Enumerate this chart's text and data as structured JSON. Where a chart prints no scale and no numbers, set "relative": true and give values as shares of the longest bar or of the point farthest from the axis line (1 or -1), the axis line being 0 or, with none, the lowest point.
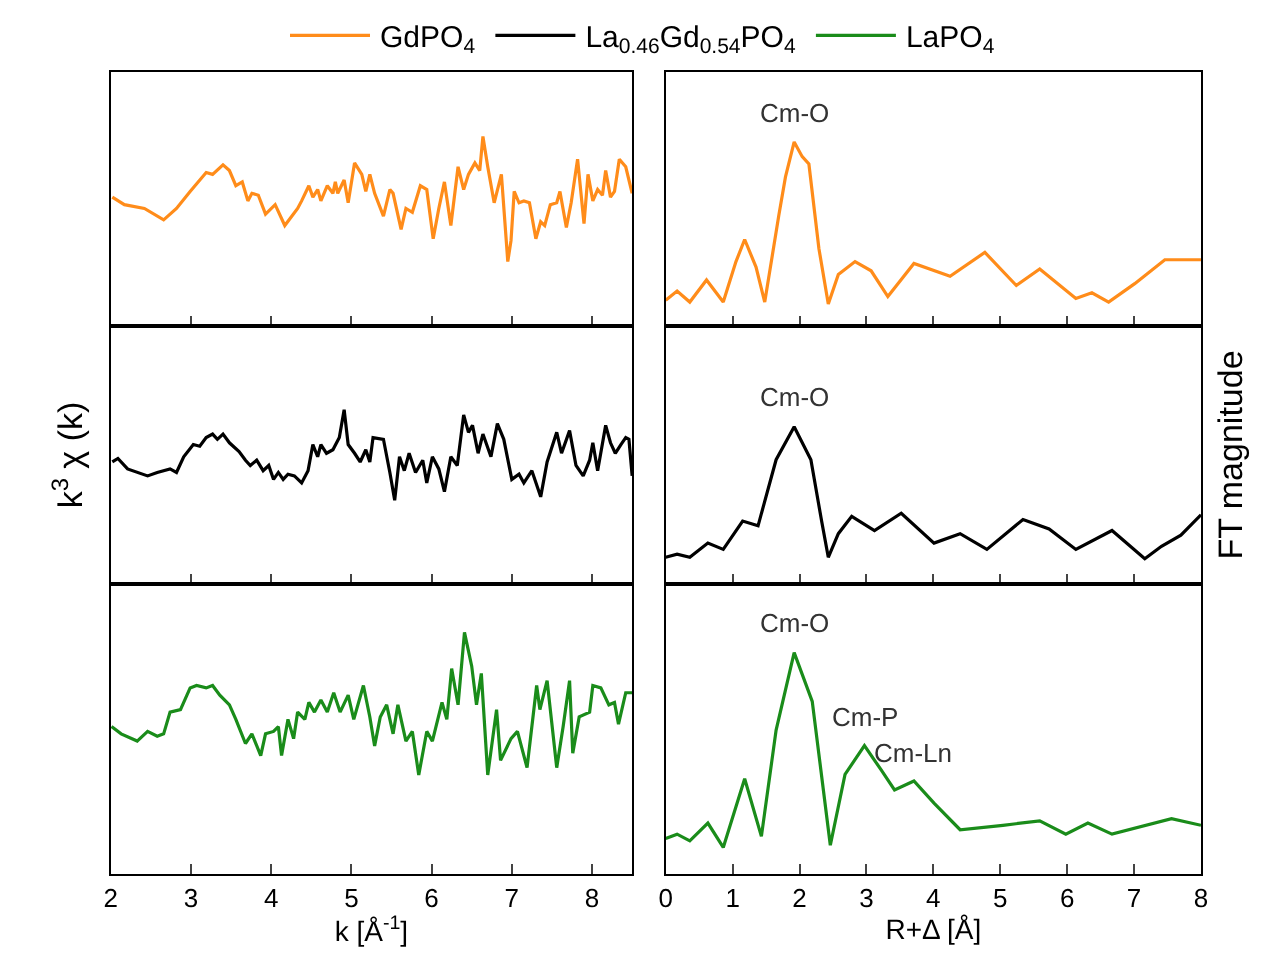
{
  "chart_data": [
    {
      "type": "line",
      "relative": true,
      "legend": "top",
      "tick_labels": false,
      "xlim": [
        2,
        8.5
      ],
      "xticks": [
        2,
        3,
        4,
        5,
        6,
        7,
        8
      ],
      "x": [
        2.02,
        2.17,
        2.42,
        2.66,
        2.82,
        2.99,
        3.19,
        3.27,
        3.4,
        3.48,
        3.56,
        3.64,
        3.71,
        3.76,
        3.84,
        3.93,
        4.05,
        4.17,
        4.33,
        4.38,
        4.47,
        4.52,
        4.58,
        4.62,
        4.7,
        4.77,
        4.8,
        4.83,
        4.91,
        4.96,
        5.04,
        5.13,
        5.18,
        5.23,
        5.29,
        5.4,
        5.48,
        5.52,
        5.62,
        5.68,
        5.76,
        5.86,
        5.94,
        6.02,
        6.09,
        6.16,
        6.24,
        6.33,
        6.4,
        6.46,
        6.54,
        6.6,
        6.64,
        6.7,
        6.78,
        6.87,
        6.95,
        6.99,
        7.03,
        7.09,
        7.15,
        7.22,
        7.3,
        7.36,
        7.41,
        7.48,
        7.56,
        7.6,
        7.68,
        7.74,
        7.82,
        7.9,
        7.95,
        8.01,
        8.07,
        8.13,
        8.17,
        8.23,
        8.28,
        8.34,
        8.42,
        8.5
      ],
      "series": [
        {
          "name": "GdPO$_{4}$",
          "color": "#ff8c1a",
          "values": [
            0.68,
            0.64,
            0.62,
            0.56,
            0.62,
            0.71,
            0.81,
            0.8,
            0.85,
            0.82,
            0.74,
            0.76,
            0.66,
            0.7,
            0.69,
            0.59,
            0.64,
            0.53,
            0.62,
            0.66,
            0.74,
            0.68,
            0.72,
            0.66,
            0.74,
            0.7,
            0.76,
            0.7,
            0.77,
            0.65,
            0.86,
            0.8,
            0.71,
            0.8,
            0.7,
            0.58,
            0.72,
            0.7,
            0.51,
            0.62,
            0.6,
            0.74,
            0.72,
            0.46,
            0.62,
            0.76,
            0.53,
            0.84,
            0.72,
            0.8,
            0.86,
            0.82,
            1.0,
            0.84,
            0.65,
            0.8,
            0.34,
            0.45,
            0.71,
            0.65,
            0.66,
            0.65,
            0.46,
            0.55,
            0.53,
            0.64,
            0.65,
            0.71,
            0.52,
            0.65,
            0.88,
            0.54,
            0.8,
            0.66,
            0.72,
            0.69,
            0.82,
            0.68,
            0.71,
            0.88,
            0.84,
            0.7
          ]
        }
      ]
    },
    {
      "type": "line",
      "relative": true,
      "legend": "top",
      "tick_labels": false,
      "xlim": [
        0,
        8
      ],
      "xticks": [
        0,
        1,
        2,
        3,
        4,
        5,
        6,
        7,
        8
      ],
      "x": [
        0,
        0.17,
        0.36,
        0.61,
        0.86,
        1.05,
        1.18,
        1.35,
        1.48,
        1.69,
        1.79,
        1.92,
        2.04,
        2.14,
        2.29,
        2.43,
        2.58,
        2.83,
        3.07,
        3.32,
        3.71,
        4.25,
        4.77,
        5.24,
        5.59,
        6.13,
        6.37,
        6.62,
        7.01,
        7.46,
        8.0
      ],
      "series": [
        {
          "name": "GdPO$_{4}$",
          "color": "#ff8c1a",
          "values": [
            0.14,
            0.19,
            0.13,
            0.25,
            0.13,
            0.35,
            0.47,
            0.32,
            0.13,
            0.6,
            0.81,
            1.0,
            0.92,
            0.88,
            0.42,
            0.12,
            0.28,
            0.35,
            0.3,
            0.16,
            0.34,
            0.27,
            0.4,
            0.22,
            0.31,
            0.15,
            0.18,
            0.13,
            0.23,
            0.36,
            0.36
          ]
        }
      ],
      "annotations": [
        {
          "text": "Cm-O",
          "x": 1.92,
          "y": 1.0
        }
      ]
    },
    {
      "type": "line",
      "relative": true,
      "legend": "top",
      "tick_labels": false,
      "xlim": [
        2,
        8.5
      ],
      "xticks": [
        2,
        3,
        4,
        5,
        6,
        7,
        8
      ],
      "ylabel": "k$^{3}$ χ (k)",
      "x": [
        2.02,
        2.09,
        2.21,
        2.46,
        2.58,
        2.74,
        2.82,
        2.91,
        3.03,
        3.11,
        3.19,
        3.27,
        3.33,
        3.4,
        3.48,
        3.6,
        3.68,
        3.74,
        3.82,
        3.9,
        3.97,
        4.03,
        4.09,
        4.15,
        4.21,
        4.29,
        4.38,
        4.46,
        4.52,
        4.58,
        4.62,
        4.69,
        4.77,
        4.85,
        4.91,
        4.96,
        5.04,
        5.11,
        5.18,
        5.23,
        5.27,
        5.4,
        5.48,
        5.54,
        5.6,
        5.66,
        5.72,
        5.8,
        5.89,
        5.94,
        6.01,
        6.09,
        6.16,
        6.24,
        6.32,
        6.4,
        6.46,
        6.51,
        6.58,
        6.64,
        6.74,
        6.82,
        6.9,
        7.0,
        7.09,
        7.15,
        7.25,
        7.36,
        7.44,
        7.56,
        7.62,
        7.72,
        7.8,
        7.89,
        7.97,
        8.01,
        8.07,
        8.17,
        8.23,
        8.29,
        8.36,
        8.42,
        8.46,
        8.5
      ],
      "series": [
        {
          "name": "La$_{0.46}$Gd$_{0.54}$PO$_{4}$",
          "color": "#000000",
          "values": [
            0.7,
            0.72,
            0.66,
            0.62,
            0.64,
            0.66,
            0.64,
            0.73,
            0.8,
            0.79,
            0.84,
            0.86,
            0.83,
            0.86,
            0.81,
            0.76,
            0.71,
            0.68,
            0.71,
            0.65,
            0.68,
            0.6,
            0.64,
            0.6,
            0.63,
            0.62,
            0.58,
            0.65,
            0.8,
            0.73,
            0.8,
            0.75,
            0.77,
            0.84,
            1.0,
            0.8,
            0.75,
            0.7,
            0.77,
            0.7,
            0.84,
            0.83,
            0.64,
            0.48,
            0.73,
            0.65,
            0.75,
            0.64,
            0.71,
            0.58,
            0.73,
            0.66,
            0.53,
            0.73,
            0.68,
            0.97,
            0.87,
            0.91,
            0.75,
            0.86,
            0.73,
            0.92,
            0.83,
            0.6,
            0.63,
            0.58,
            0.65,
            0.5,
            0.7,
            0.87,
            0.75,
            0.88,
            0.68,
            0.62,
            0.71,
            0.81,
            0.65,
            0.91,
            0.81,
            0.75,
            0.8,
            0.84,
            0.83,
            0.62
          ]
        }
      ]
    },
    {
      "type": "line",
      "relative": true,
      "legend": "top",
      "tick_labels": false,
      "xlim": [
        0,
        8
      ],
      "xticks": [
        0,
        1,
        2,
        3,
        4,
        5,
        6,
        7,
        8
      ],
      "ylabel": "FT magnitude",
      "x": [
        0,
        0.17,
        0.36,
        0.63,
        0.86,
        1.15,
        1.38,
        1.65,
        1.92,
        2.17,
        2.33,
        2.43,
        2.58,
        2.78,
        3.12,
        3.52,
        4.01,
        4.4,
        4.8,
        5.34,
        5.73,
        6.13,
        6.67,
        7.16,
        7.41,
        7.7,
        8.0
      ],
      "series": [
        {
          "name": "La$_{0.46}$Gd$_{0.54}$PO$_{4}$",
          "color": "#000000",
          "values": [
            0.17,
            0.19,
            0.17,
            0.26,
            0.22,
            0.4,
            0.37,
            0.79,
            1.0,
            0.79,
            0.4,
            0.17,
            0.32,
            0.43,
            0.34,
            0.45,
            0.26,
            0.32,
            0.22,
            0.41,
            0.35,
            0.22,
            0.34,
            0.16,
            0.24,
            0.31,
            0.44
          ]
        }
      ],
      "annotations": [
        {
          "text": "Cm-O",
          "x": 1.92,
          "y": 1.0
        }
      ]
    },
    {
      "type": "line",
      "relative": true,
      "legend": "top",
      "tick_labels": "x",
      "xlim": [
        2,
        8.5
      ],
      "xticks": [
        2,
        3,
        4,
        5,
        6,
        7,
        8
      ],
      "xlabel": "k [Å$^{-1}$]",
      "x": [
        2.01,
        2.13,
        2.33,
        2.46,
        2.58,
        2.66,
        2.74,
        2.87,
        2.99,
        3.07,
        3.19,
        3.27,
        3.36,
        3.48,
        3.56,
        3.68,
        3.76,
        3.87,
        3.93,
        4.03,
        4.09,
        4.13,
        4.21,
        4.28,
        4.33,
        4.42,
        4.47,
        4.54,
        4.62,
        4.7,
        4.78,
        4.86,
        4.96,
        5.03,
        5.15,
        5.23,
        5.29,
        5.36,
        5.44,
        5.52,
        5.58,
        5.68,
        5.76,
        5.84,
        5.94,
        6.01,
        6.13,
        6.19,
        6.25,
        6.33,
        6.41,
        6.5,
        6.56,
        6.62,
        6.7,
        6.81,
        6.86,
        6.99,
        7.07,
        7.19,
        7.31,
        7.35,
        7.44,
        7.56,
        7.64,
        7.72,
        7.76,
        7.84,
        7.97,
        8.01,
        8.11,
        8.21,
        8.28,
        8.33,
        8.42,
        8.5
      ],
      "series": [
        {
          "name": "LaPO$_{4}$",
          "color": "#1a8c1a",
          "values": [
            0.61,
            0.58,
            0.55,
            0.59,
            0.57,
            0.58,
            0.67,
            0.68,
            0.77,
            0.78,
            0.77,
            0.78,
            0.74,
            0.7,
            0.64,
            0.54,
            0.58,
            0.49,
            0.58,
            0.59,
            0.61,
            0.49,
            0.64,
            0.56,
            0.67,
            0.64,
            0.71,
            0.67,
            0.72,
            0.67,
            0.75,
            0.67,
            0.74,
            0.64,
            0.78,
            0.65,
            0.53,
            0.65,
            0.7,
            0.58,
            0.7,
            0.55,
            0.59,
            0.41,
            0.59,
            0.55,
            0.71,
            0.64,
            0.85,
            0.7,
            1.0,
            0.86,
            0.7,
            0.83,
            0.41,
            0.68,
            0.47,
            0.56,
            0.59,
            0.44,
            0.78,
            0.68,
            0.8,
            0.44,
            0.61,
            0.8,
            0.5,
            0.65,
            0.67,
            0.78,
            0.77,
            0.7,
            0.71,
            0.62,
            0.75,
            0.75
          ]
        }
      ]
    },
    {
      "type": "line",
      "relative": true,
      "legend": "top",
      "tick_labels": "x",
      "xlim": [
        0,
        8
      ],
      "xticks": [
        0,
        1,
        2,
        3,
        4,
        5,
        6,
        7,
        8
      ],
      "xlabel": "R+Δ [Å]",
      "x": [
        0,
        0.17,
        0.36,
        0.63,
        0.86,
        1.18,
        1.43,
        1.65,
        1.92,
        2.19,
        2.46,
        2.68,
        2.97,
        3.22,
        3.42,
        3.71,
        4.01,
        4.4,
        5.04,
        5.59,
        5.98,
        6.31,
        6.67,
        7.56,
        8.0
      ],
      "series": [
        {
          "name": "LaPO$_{4}$",
          "color": "#1a8c1a",
          "values": [
            0.16,
            0.18,
            0.15,
            0.23,
            0.12,
            0.43,
            0.17,
            0.65,
            1.0,
            0.78,
            0.13,
            0.45,
            0.58,
            0.47,
            0.38,
            0.42,
            0.32,
            0.2,
            0.22,
            0.24,
            0.18,
            0.23,
            0.18,
            0.25,
            0.22
          ]
        }
      ],
      "annotations": [
        {
          "text": "Cm-O",
          "x": 1.92,
          "y": 1.0
        },
        {
          "text": "Cm-P",
          "x": 2.97,
          "y": 0.58
        },
        {
          "text": "Cm-Ln",
          "x": 3.71,
          "y": 0.42
        }
      ]
    }
  ]
}
